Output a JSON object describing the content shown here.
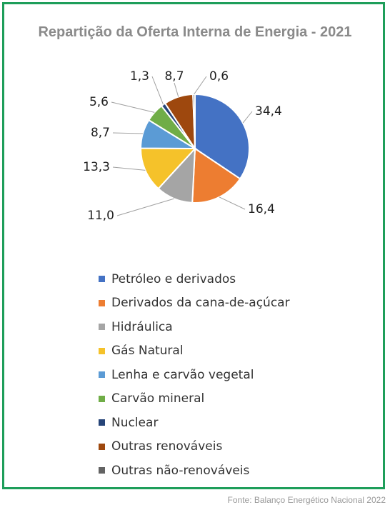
{
  "chart_data": {
    "type": "pie",
    "title": "Repartição da Oferta Interna de Energia - 2021",
    "categories": [
      "Petróleo e derivados",
      "Derivados da cana-de-açúcar",
      "Hidráulica",
      "Gás Natural",
      "Lenha e carvão vegetal",
      "Carvão mineral",
      "Nuclear",
      "Outras renováveis",
      "Outras não-renováveis"
    ],
    "values": [
      34.4,
      16.4,
      11.0,
      13.3,
      8.7,
      5.6,
      1.3,
      8.7,
      0.6
    ],
    "value_labels": [
      "34,4",
      "16,4",
      "11,0",
      "13,3",
      "8,7",
      "5,6",
      "1,3",
      "8,7",
      "0,6"
    ],
    "colors": [
      "#4472c4",
      "#ed7d31",
      "#a5a5a5",
      "#f5c22a",
      "#5b9bd5",
      "#70ad47",
      "#264478",
      "#9e480e",
      "#636363"
    ],
    "legend_position": "bottom"
  },
  "source": "Fonte: Balanço Energético Nacional 2022"
}
